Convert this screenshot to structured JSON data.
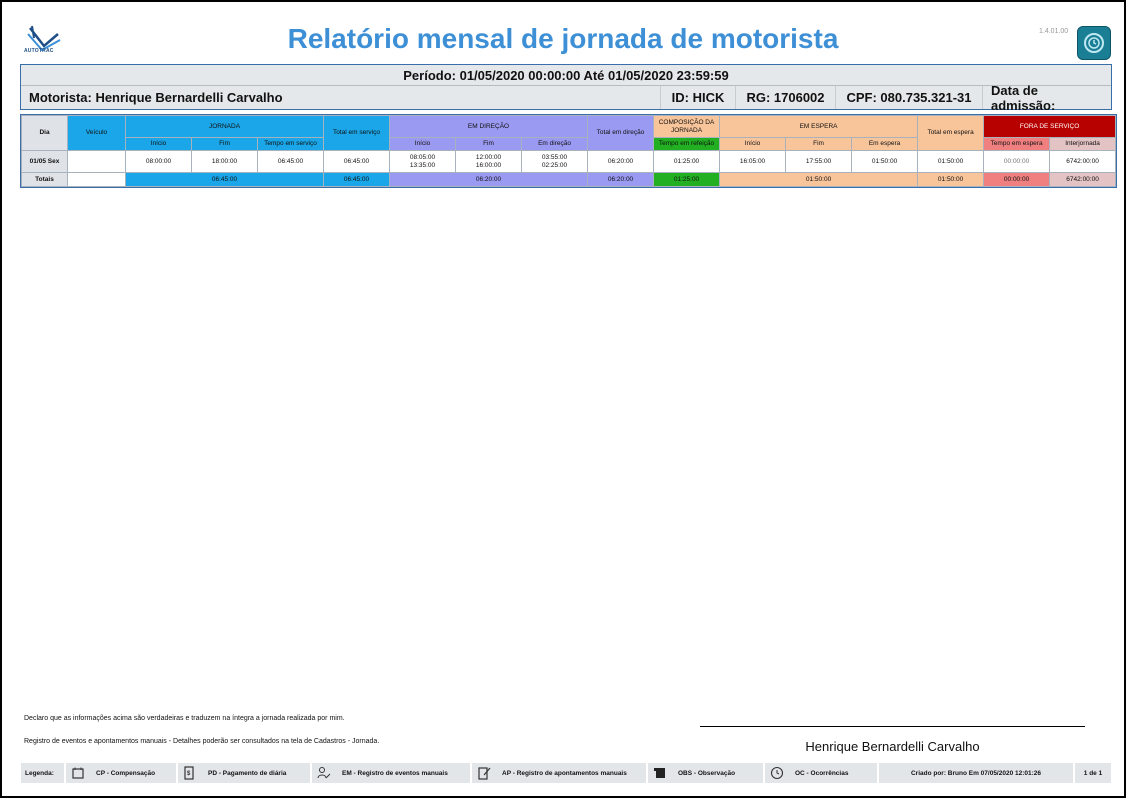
{
  "header": {
    "logo_text": "AUTOTRAC",
    "title": "Relatório mensal de jornada de motorista",
    "version": "1.4.01.00"
  },
  "info": {
    "period": "Período: 01/05/2020 00:00:00 Até 01/05/2020 23:59:59",
    "driver": "Motorista: Henrique Bernardelli Carvalho",
    "id": "ID: HICK",
    "rg": "RG: 1706002",
    "cpf": "CPF: 080.735.321-31",
    "admission": "Data de admissão:"
  },
  "table": {
    "groups": {
      "dia": "Dia",
      "veiculo": "Veículo",
      "jornada": "JORNADA",
      "total_servico": "Total em serviço",
      "em_direcao": "EM DIREÇÃO",
      "total_direcao": "Total em direção",
      "composicao": "COMPOSIÇÃO DA JORNADA",
      "em_espera": "EM ESPERA",
      "total_espera": "Total em espera",
      "fora_servico": "FORA DE SERVIÇO"
    },
    "sub": {
      "jornada_inicio": "Início",
      "jornada_fim": "Fim",
      "jornada_tempo": "Tempo em serviço",
      "direcao_inicio": "Início",
      "direcao_fim": "Fim",
      "direcao_em": "Em direção",
      "refeicao": "Tempo em refeição",
      "espera_inicio": "Início",
      "espera_fim": "Fim",
      "espera_em": "Em espera",
      "fora_espera": "Tempo em espera",
      "interjornada": "Interjornada"
    },
    "row": {
      "dia": "01/05 Sex",
      "veiculo": "",
      "jornada_inicio": "08:00:00",
      "jornada_fim": "18:00:00",
      "jornada_tempo": "06:45:00",
      "total_servico": "06:45:00",
      "direcao_inicio_1": "08:05:00",
      "direcao_inicio_2": "13:35:00",
      "direcao_fim_1": "12:00:00",
      "direcao_fim_2": "16:00:00",
      "direcao_em_1": "03:55:00",
      "direcao_em_2": "02:25:00",
      "total_direcao": "06:20:00",
      "refeicao": "01:25:00",
      "espera_inicio": "16:05:00",
      "espera_fim": "17:55:00",
      "espera_em": "01:50:00",
      "total_espera": "01:50:00",
      "fora_espera": "00:00:00",
      "interjornada": "6742:00:00"
    },
    "totals": {
      "label": "Totais",
      "jornada": "06:45:00",
      "total_servico": "06:45:00",
      "direcao": "06:20:00",
      "total_direcao": "06:20:00",
      "refeicao": "01:25:00",
      "espera": "01:50:00",
      "total_espera": "01:50:00",
      "fora_espera": "00:00:00",
      "interjornada": "6742:00:00"
    }
  },
  "footer": {
    "declaration": "Declaro que as informações acima são verdadeiras e traduzem na íntegra a jornada realizada por mim.",
    "registro": "Registro de eventos e apontamentos manuais - Detalhes poderão ser consultados na tela de Cadastros - Jornada.",
    "signature_name": "Henrique Bernardelli Carvalho"
  },
  "legend": {
    "label": "Legenda:",
    "cp": "CP - Compensação",
    "pd": "PD - Pagamento de diária",
    "em": "EM - Registro de eventos manuais",
    "ap": "AP - Registro de apontamentos manuais",
    "obs": "OBS - Observação",
    "oc": "OC - Ocorrências",
    "created": "Criado por: Bruno Em 07/05/2020 12:01:26",
    "page": "1 de 1"
  },
  "colors": {
    "title": "#3d8fd6",
    "jornada": "#1aa6e8",
    "direcao": "#9a9af2",
    "espera": "#f8c49a",
    "refeicao": "#22b022",
    "fora_servico": "#b70000"
  }
}
